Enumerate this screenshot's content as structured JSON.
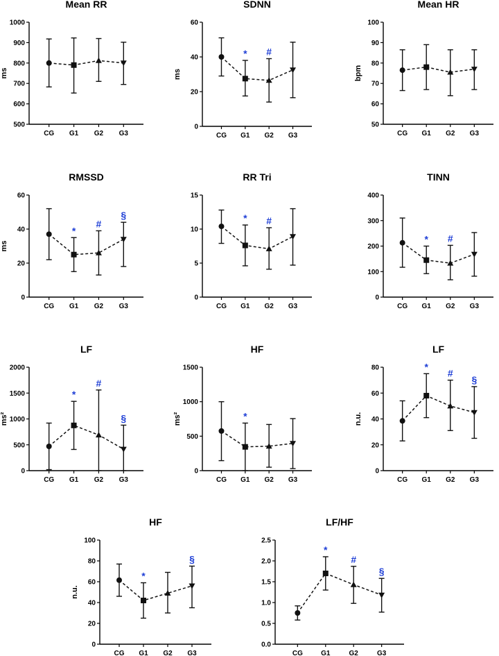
{
  "colors": {
    "axis": "#000000",
    "marker": "#111111",
    "significance": "#1f3fd6"
  },
  "chart_data": [
    {
      "type": "line",
      "title": "Mean RR",
      "ylabel": "ms",
      "categories": [
        "CG",
        "G1",
        "G2",
        "G3"
      ],
      "ylim": [
        500,
        1000
      ],
      "yticks": [
        "500",
        "600",
        "700",
        "800",
        "900",
        "1000"
      ],
      "values": [
        800,
        790,
        812,
        800
      ],
      "err_low": [
        683,
        653,
        710,
        695
      ],
      "err_high": [
        918,
        923,
        920,
        902
      ],
      "markers": [
        "circle",
        "square",
        "triangle",
        "triangle-down"
      ],
      "annotations": [
        "",
        "",
        "",
        ""
      ]
    },
    {
      "type": "line",
      "title": "SDNN",
      "ylabel": "ms",
      "categories": [
        "CG",
        "G1",
        "G2",
        "G3"
      ],
      "ylim": [
        0,
        60
      ],
      "yticks": [
        "0",
        "20",
        "40",
        "60"
      ],
      "values": [
        40,
        27.5,
        26.5,
        32.5
      ],
      "err_low": [
        29,
        17.5,
        14,
        16.5
      ],
      "err_high": [
        51,
        38,
        39,
        48.5
      ],
      "markers": [
        "circle",
        "square",
        "triangle",
        "triangle-down"
      ],
      "annotations": [
        "",
        "*",
        "#",
        ""
      ]
    },
    {
      "type": "line",
      "title": "Mean HR",
      "ylabel": "bpm",
      "categories": [
        "CG",
        "G1",
        "G2",
        "G3"
      ],
      "ylim": [
        50,
        100
      ],
      "yticks": [
        "50",
        "60",
        "70",
        "80",
        "90",
        "100"
      ],
      "values": [
        76.5,
        78,
        75.5,
        77
      ],
      "err_low": [
        66.5,
        67,
        64,
        67
      ],
      "err_high": [
        86.5,
        89,
        86.5,
        86.5
      ],
      "markers": [
        "circle",
        "square",
        "triangle",
        "triangle-down"
      ],
      "annotations": [
        "",
        "",
        "",
        ""
      ]
    },
    {
      "type": "line",
      "title": "RMSSD",
      "ylabel": "ms",
      "categories": [
        "CG",
        "G1",
        "G2",
        "G3"
      ],
      "ylim": [
        0,
        60
      ],
      "yticks": [
        "0",
        "20",
        "40",
        "60"
      ],
      "values": [
        37,
        25,
        26,
        34
      ],
      "err_low": [
        22,
        15,
        13,
        18
      ],
      "err_high": [
        52,
        35,
        39,
        44
      ],
      "markers": [
        "circle",
        "square",
        "triangle",
        "triangle-down"
      ],
      "annotations": [
        "",
        "*",
        "#",
        "§"
      ]
    },
    {
      "type": "line",
      "title": "RR Tri",
      "ylabel": "",
      "categories": [
        "CG",
        "G1",
        "G2",
        "G3"
      ],
      "ylim": [
        0,
        15
      ],
      "yticks": [
        "0",
        "5",
        "10",
        "15"
      ],
      "values": [
        10.4,
        7.6,
        7.1,
        8.9
      ],
      "err_low": [
        7.9,
        4.6,
        4.1,
        4.7
      ],
      "err_high": [
        12.8,
        10.6,
        10.2,
        13
      ],
      "markers": [
        "circle",
        "square",
        "triangle",
        "triangle-down"
      ],
      "annotations": [
        "",
        "*",
        "#",
        ""
      ]
    },
    {
      "type": "line",
      "title": "TINN",
      "ylabel": "",
      "categories": [
        "CG",
        "G1",
        "G2",
        "G3"
      ],
      "ylim": [
        0,
        400
      ],
      "yticks": [
        "0",
        "100",
        "200",
        "300",
        "400"
      ],
      "values": [
        213,
        145,
        133,
        168
      ],
      "err_low": [
        117,
        92,
        68,
        82
      ],
      "err_high": [
        310,
        200,
        203,
        253
      ],
      "markers": [
        "circle",
        "square",
        "triangle",
        "triangle-down"
      ],
      "annotations": [
        "",
        "*",
        "#",
        ""
      ]
    },
    {
      "type": "line",
      "title": "LF",
      "ylabel": "ms²",
      "categories": [
        "CG",
        "G1",
        "G2",
        "G3"
      ],
      "ylim": [
        0,
        2000
      ],
      "yticks": [
        "0",
        "500",
        "1000",
        "1500",
        "2000"
      ],
      "values": [
        470,
        875,
        690,
        415
      ],
      "err_low": [
        20,
        410,
        0,
        0
      ],
      "err_high": [
        920,
        1340,
        1560,
        880
      ],
      "markers": [
        "circle",
        "square",
        "triangle",
        "triangle-down"
      ],
      "annotations": [
        "",
        "*",
        "#",
        "§"
      ]
    },
    {
      "type": "line",
      "title": "HF",
      "ylabel": "ms²",
      "categories": [
        "CG",
        "G1",
        "G2",
        "G3"
      ],
      "ylim": [
        0,
        1500
      ],
      "yticks": [
        "0",
        "500",
        "1000",
        "1500"
      ],
      "values": [
        575,
        345,
        355,
        395
      ],
      "err_low": [
        145,
        0,
        50,
        30
      ],
      "err_high": [
        1000,
        690,
        670,
        755
      ],
      "markers": [
        "circle",
        "square",
        "triangle",
        "triangle-down"
      ],
      "annotations": [
        "",
        "*",
        "",
        ""
      ]
    },
    {
      "type": "line",
      "title": "LF",
      "ylabel": "n.u.",
      "categories": [
        "CG",
        "G1",
        "G2",
        "G3"
      ],
      "ylim": [
        0,
        80
      ],
      "yticks": [
        "0",
        "20",
        "40",
        "60",
        "80"
      ],
      "values": [
        38.5,
        58,
        50,
        45
      ],
      "err_low": [
        23,
        41,
        31,
        25
      ],
      "err_high": [
        54,
        75,
        70,
        65
      ],
      "markers": [
        "circle",
        "square",
        "triangle",
        "triangle-down"
      ],
      "annotations": [
        "",
        "*",
        "#",
        "§"
      ]
    },
    {
      "type": "line",
      "title": "HF",
      "ylabel": "n.u.",
      "categories": [
        "CG",
        "G1",
        "G2",
        "G3"
      ],
      "ylim": [
        0,
        100
      ],
      "yticks": [
        "0",
        "20",
        "40",
        "60",
        "80",
        "100"
      ],
      "values": [
        61.5,
        42,
        49,
        56
      ],
      "err_low": [
        46,
        25,
        30,
        35
      ],
      "err_high": [
        77,
        59,
        69,
        75
      ],
      "markers": [
        "circle",
        "square",
        "triangle",
        "triangle-down"
      ],
      "annotations": [
        "",
        "*",
        "",
        "§"
      ]
    },
    {
      "type": "line",
      "title": "LF/HF",
      "ylabel": "",
      "categories": [
        "CG",
        "G1",
        "G2",
        "G3"
      ],
      "ylim": [
        0,
        2.5
      ],
      "yticks": [
        "0.0",
        "0.5",
        "1.0",
        "1.5",
        "2.0",
        "2.5"
      ],
      "values": [
        0.75,
        1.7,
        1.43,
        1.18
      ],
      "err_low": [
        0.58,
        1.3,
        0.98,
        0.77
      ],
      "err_high": [
        0.92,
        2.1,
        1.87,
        1.58
      ],
      "markers": [
        "circle",
        "square",
        "triangle",
        "triangle-down"
      ],
      "annotations": [
        "",
        "*",
        "#",
        "§"
      ]
    }
  ]
}
